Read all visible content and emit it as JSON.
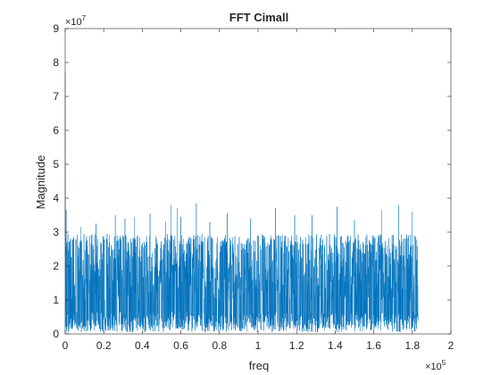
{
  "chart_data": {
    "type": "line",
    "title": "FFT Cimall",
    "xlabel": "freq",
    "ylabel": "Magnitude",
    "x_multiplier_label": "×10",
    "x_multiplier_exponent": "5",
    "y_multiplier_label": "×10",
    "y_multiplier_exponent": "7",
    "xlim": [
      0,
      200000
    ],
    "ylim": [
      0,
      90000000
    ],
    "x_ticks": [
      0,
      20000,
      40000,
      60000,
      80000,
      100000,
      120000,
      140000,
      160000,
      180000,
      200000
    ],
    "x_tick_labels": [
      "0",
      "0.2",
      "0.4",
      "0.6",
      "0.8",
      "1",
      "1.2",
      "1.4",
      "1.6",
      "1.8",
      "2"
    ],
    "y_ticks": [
      0,
      10000000,
      20000000,
      30000000,
      40000000,
      50000000,
      60000000,
      70000000,
      80000000,
      90000000
    ],
    "y_tick_labels": [
      "0",
      "1",
      "2",
      "3",
      "4",
      "5",
      "6",
      "7",
      "8",
      "9"
    ],
    "grid": false,
    "box": true,
    "series_color": "#0072BD",
    "data_x_range": [
      0,
      183000
    ],
    "typical_peak": 26000000,
    "max_peak": 38500000,
    "first_point_value": 77000000,
    "minimum_floor": 500000,
    "peaks": [
      {
        "x": 500,
        "y": 36500000
      },
      {
        "x": 8000,
        "y": 31500000
      },
      {
        "x": 16000,
        "y": 32500000
      },
      {
        "x": 26000,
        "y": 35000000
      },
      {
        "x": 31000,
        "y": 34000000
      },
      {
        "x": 36000,
        "y": 34500000
      },
      {
        "x": 44000,
        "y": 35500000
      },
      {
        "x": 52000,
        "y": 33000000
      },
      {
        "x": 55000,
        "y": 38000000
      },
      {
        "x": 58000,
        "y": 37000000
      },
      {
        "x": 60000,
        "y": 34500000
      },
      {
        "x": 68000,
        "y": 38500000
      },
      {
        "x": 75000,
        "y": 33000000
      },
      {
        "x": 84000,
        "y": 35500000
      },
      {
        "x": 96000,
        "y": 34000000
      },
      {
        "x": 109000,
        "y": 37000000
      },
      {
        "x": 119000,
        "y": 35000000
      },
      {
        "x": 128000,
        "y": 35000000
      },
      {
        "x": 141000,
        "y": 37500000
      },
      {
        "x": 150000,
        "y": 33500000
      },
      {
        "x": 164000,
        "y": 36500000
      },
      {
        "x": 173000,
        "y": 38000000
      },
      {
        "x": 180000,
        "y": 36000000
      }
    ]
  }
}
